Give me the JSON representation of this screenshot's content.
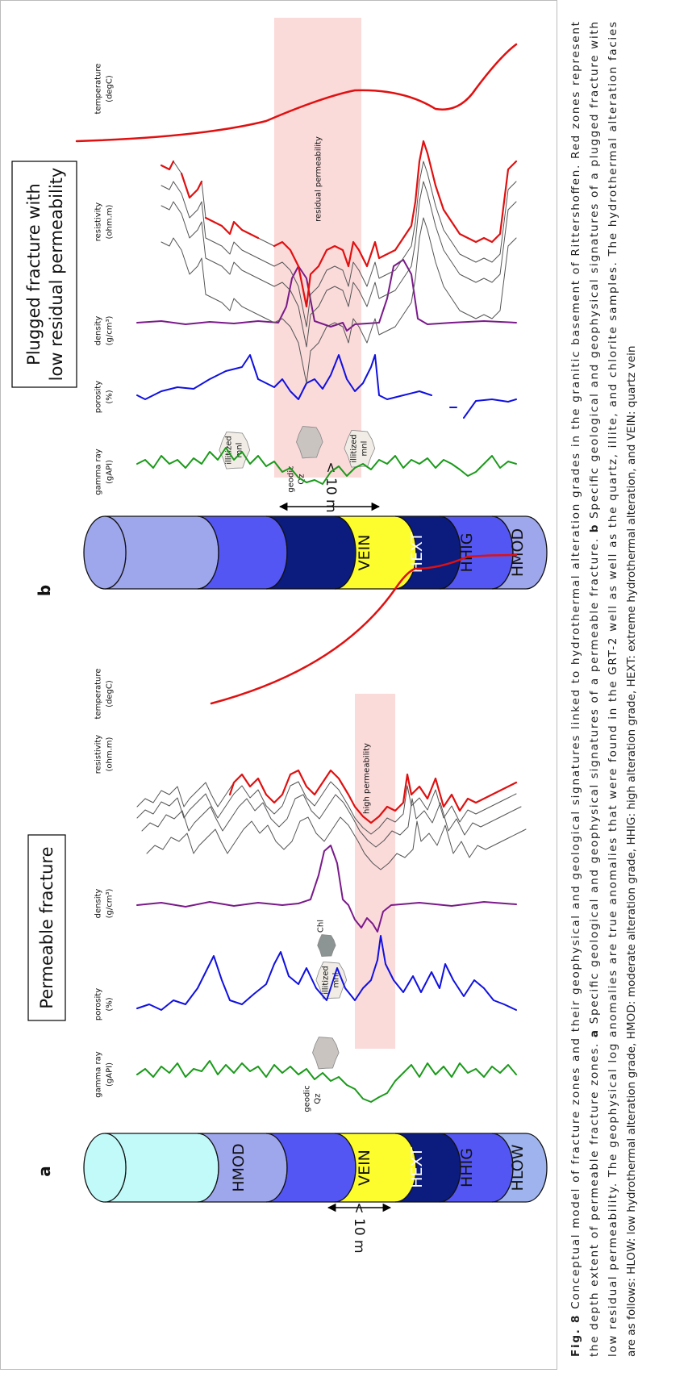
{
  "panels": [
    {
      "label": "a",
      "title": [
        "Permeable fracture"
      ],
      "facies": [
        "HMOD",
        "VEIN",
        "HEXT",
        "HHIG",
        "HLOW"
      ],
      "scale": "< 10 m",
      "band_label": "high permeability",
      "minerals": [
        [
          "geodic",
          "Qz"
        ],
        [
          "illitized",
          "mnl"
        ],
        [
          "Chl"
        ]
      ],
      "logs": [
        [
          "gamma ray",
          "(gAPI)"
        ],
        [
          "porosity",
          "(%)"
        ],
        [
          "density",
          "(g/cm³)"
        ],
        [
          "resistivity",
          "(ohm.m)"
        ],
        [
          "temperature",
          "(degC)"
        ]
      ]
    },
    {
      "label": "b",
      "title": [
        "Plugged fracture with",
        "low residual permeability"
      ],
      "facies": [
        "VEIN",
        "HEXT",
        "HHIG",
        "HMOD"
      ],
      "scale": "< 10 m",
      "band_label": "residual permeability",
      "minerals": [
        [
          "illitized",
          "mnl"
        ],
        [
          "geodic",
          "Qz"
        ],
        [
          "illitized",
          "mnl"
        ]
      ],
      "logs": [
        [
          "gamma ray",
          "(gAPI)"
        ],
        [
          "porosity",
          "(%)"
        ],
        [
          "density",
          "(g/cm³)"
        ],
        [
          "resistivity",
          "(ohm.m)"
        ],
        [
          "temperature",
          "(degC)"
        ]
      ]
    }
  ],
  "caption": {
    "label": "Fig. 8",
    "lines": [
      [
        "Conceptual model of fracture zones and their geophysical and geological signatures linked to hydrothermal alteration grades in the granitic basement of Rittershoffen. Red zones represent"
      ],
      [
        "the depth extent of permeable fracture zones.",
        "a",
        "Specific geological and geophysical signatures of a permeable fracture.",
        "b",
        "Specific geological and geophysical signatures of a plugged fracture with"
      ],
      [
        "low residual permeability. The geophysical log anomalies are true anomalies that were found in the GRT-2 well as well as the quartz, illite, and chlorite samples. The hydrothermal alteration facies"
      ],
      [
        "are as follows: HLOW: low hydrothermal alteration grade, HMOD: moderate alteration grade, HHIG: high alteration grade, HEXT: extreme hydrothermal alteration, and VEIN: quartz vein"
      ]
    ]
  }
}
